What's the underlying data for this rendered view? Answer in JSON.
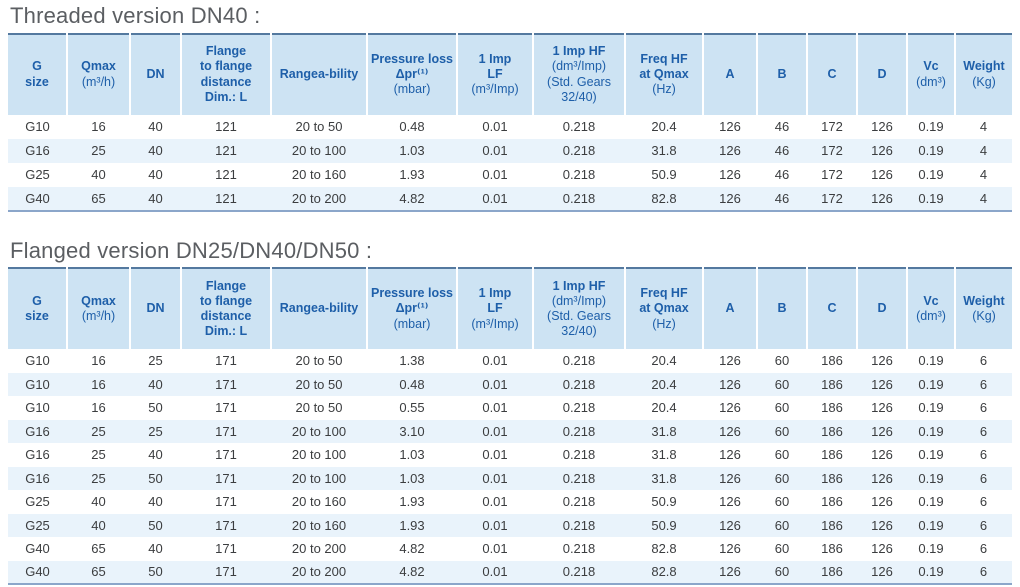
{
  "colors": {
    "header_text_blue": "#1e5fa9",
    "header_bg_blue": "#cde3f3",
    "row_stripe_blue": "#e9f3fb",
    "table_top_border": "#54799f",
    "table_bottom_border": "#8ba6ca",
    "title_gray": "#5b5e62",
    "data_text": "#3b3d3f"
  },
  "sections": [
    {
      "title": "Threaded version DN40 :",
      "columns": [
        {
          "title_lines": [
            "G",
            "size"
          ],
          "unit_lines": []
        },
        {
          "title_lines": [
            "Qmax"
          ],
          "unit_lines": [
            "(m³/h)"
          ]
        },
        {
          "title_lines": [
            "DN"
          ],
          "unit_lines": []
        },
        {
          "title_lines": [
            "Flange",
            "to flange",
            "distance",
            "Dim.: L"
          ],
          "unit_lines": []
        },
        {
          "title_lines": [
            "Rangea-bility"
          ],
          "unit_lines": []
        },
        {
          "title_lines": [
            "Pressure loss",
            "Δpr⁽¹⁾"
          ],
          "unit_lines": [
            "(mbar)"
          ]
        },
        {
          "title_lines": [
            "1 Imp",
            "LF"
          ],
          "unit_lines": [
            "(m³/Imp)"
          ]
        },
        {
          "title_lines": [
            "1 Imp HF"
          ],
          "unit_lines": [
            "(dm³/Imp)",
            "(Std. Gears",
            "32/40)"
          ]
        },
        {
          "title_lines": [
            "Freq HF",
            "at Qmax"
          ],
          "unit_lines": [
            "(Hz)"
          ]
        },
        {
          "title_lines": [
            "A"
          ],
          "unit_lines": []
        },
        {
          "title_lines": [
            "B"
          ],
          "unit_lines": []
        },
        {
          "title_lines": [
            "C"
          ],
          "unit_lines": []
        },
        {
          "title_lines": [
            "D"
          ],
          "unit_lines": []
        },
        {
          "title_lines": [
            "Vc"
          ],
          "unit_lines": [
            "(dm³)"
          ]
        },
        {
          "title_lines": [
            "Weight"
          ],
          "unit_lines": [
            "(Kg)"
          ]
        }
      ],
      "rows": [
        [
          "G10",
          "16",
          "40",
          "121",
          "20 to 50",
          "0.48",
          "0.01",
          "0.218",
          "20.4",
          "126",
          "46",
          "172",
          "126",
          "0.19",
          "4"
        ],
        [
          "G16",
          "25",
          "40",
          "121",
          "20 to 100",
          "1.03",
          "0.01",
          "0.218",
          "31.8",
          "126",
          "46",
          "172",
          "126",
          "0.19",
          "4"
        ],
        [
          "G25",
          "40",
          "40",
          "121",
          "20 to 160",
          "1.93",
          "0.01",
          "0.218",
          "50.9",
          "126",
          "46",
          "172",
          "126",
          "0.19",
          "4"
        ],
        [
          "G40",
          "65",
          "40",
          "121",
          "20 to 200",
          "4.82",
          "0.01",
          "0.218",
          "82.8",
          "126",
          "46",
          "172",
          "126",
          "0.19",
          "4"
        ]
      ]
    },
    {
      "title": "Flanged version DN25/DN40/DN50 :",
      "columns": [
        {
          "title_lines": [
            "G",
            "size"
          ],
          "unit_lines": []
        },
        {
          "title_lines": [
            "Qmax"
          ],
          "unit_lines": [
            "(m³/h)"
          ]
        },
        {
          "title_lines": [
            "DN"
          ],
          "unit_lines": []
        },
        {
          "title_lines": [
            "Flange",
            "to flange",
            "distance",
            "Dim.: L"
          ],
          "unit_lines": []
        },
        {
          "title_lines": [
            "Rangea-bility"
          ],
          "unit_lines": []
        },
        {
          "title_lines": [
            "Pressure loss",
            "Δpr⁽¹⁾"
          ],
          "unit_lines": [
            "(mbar)"
          ]
        },
        {
          "title_lines": [
            "1 Imp",
            "LF"
          ],
          "unit_lines": [
            "(m³/Imp)"
          ]
        },
        {
          "title_lines": [
            "1 Imp HF"
          ],
          "unit_lines": [
            "(dm³/Imp)",
            "(Std. Gears",
            "32/40)"
          ]
        },
        {
          "title_lines": [
            "Freq HF",
            "at Qmax"
          ],
          "unit_lines": [
            "(Hz)"
          ]
        },
        {
          "title_lines": [
            "A"
          ],
          "unit_lines": []
        },
        {
          "title_lines": [
            "B"
          ],
          "unit_lines": []
        },
        {
          "title_lines": [
            "C"
          ],
          "unit_lines": []
        },
        {
          "title_lines": [
            "D"
          ],
          "unit_lines": []
        },
        {
          "title_lines": [
            "Vc"
          ],
          "unit_lines": [
            "(dm³)"
          ]
        },
        {
          "title_lines": [
            "Weight"
          ],
          "unit_lines": [
            "(Kg)"
          ]
        }
      ],
      "rows": [
        [
          "G10",
          "16",
          "25",
          "171",
          "20 to 50",
          "1.38",
          "0.01",
          "0.218",
          "20.4",
          "126",
          "60",
          "186",
          "126",
          "0.19",
          "6"
        ],
        [
          "G10",
          "16",
          "40",
          "171",
          "20 to 50",
          "0.48",
          "0.01",
          "0.218",
          "20.4",
          "126",
          "60",
          "186",
          "126",
          "0.19",
          "6"
        ],
        [
          "G10",
          "16",
          "50",
          "171",
          "20 to 50",
          "0.55",
          "0.01",
          "0.218",
          "20.4",
          "126",
          "60",
          "186",
          "126",
          "0.19",
          "6"
        ],
        [
          "G16",
          "25",
          "25",
          "171",
          "20 to 100",
          "3.10",
          "0.01",
          "0.218",
          "31.8",
          "126",
          "60",
          "186",
          "126",
          "0.19",
          "6"
        ],
        [
          "G16",
          "25",
          "40",
          "171",
          "20 to 100",
          "1.03",
          "0.01",
          "0.218",
          "31.8",
          "126",
          "60",
          "186",
          "126",
          "0.19",
          "6"
        ],
        [
          "G16",
          "25",
          "50",
          "171",
          "20 to 100",
          "1.03",
          "0.01",
          "0.218",
          "31.8",
          "126",
          "60",
          "186",
          "126",
          "0.19",
          "6"
        ],
        [
          "G25",
          "40",
          "40",
          "171",
          "20 to 160",
          "1.93",
          "0.01",
          "0.218",
          "50.9",
          "126",
          "60",
          "186",
          "126",
          "0.19",
          "6"
        ],
        [
          "G25",
          "40",
          "50",
          "171",
          "20 to 160",
          "1.93",
          "0.01",
          "0.218",
          "50.9",
          "126",
          "60",
          "186",
          "126",
          "0.19",
          "6"
        ],
        [
          "G40",
          "65",
          "40",
          "171",
          "20 to 200",
          "4.82",
          "0.01",
          "0.218",
          "82.8",
          "126",
          "60",
          "186",
          "126",
          "0.19",
          "6"
        ],
        [
          "G40",
          "65",
          "50",
          "171",
          "20 to 200",
          "4.82",
          "0.01",
          "0.218",
          "82.8",
          "126",
          "60",
          "186",
          "126",
          "0.19",
          "6"
        ]
      ]
    }
  ]
}
